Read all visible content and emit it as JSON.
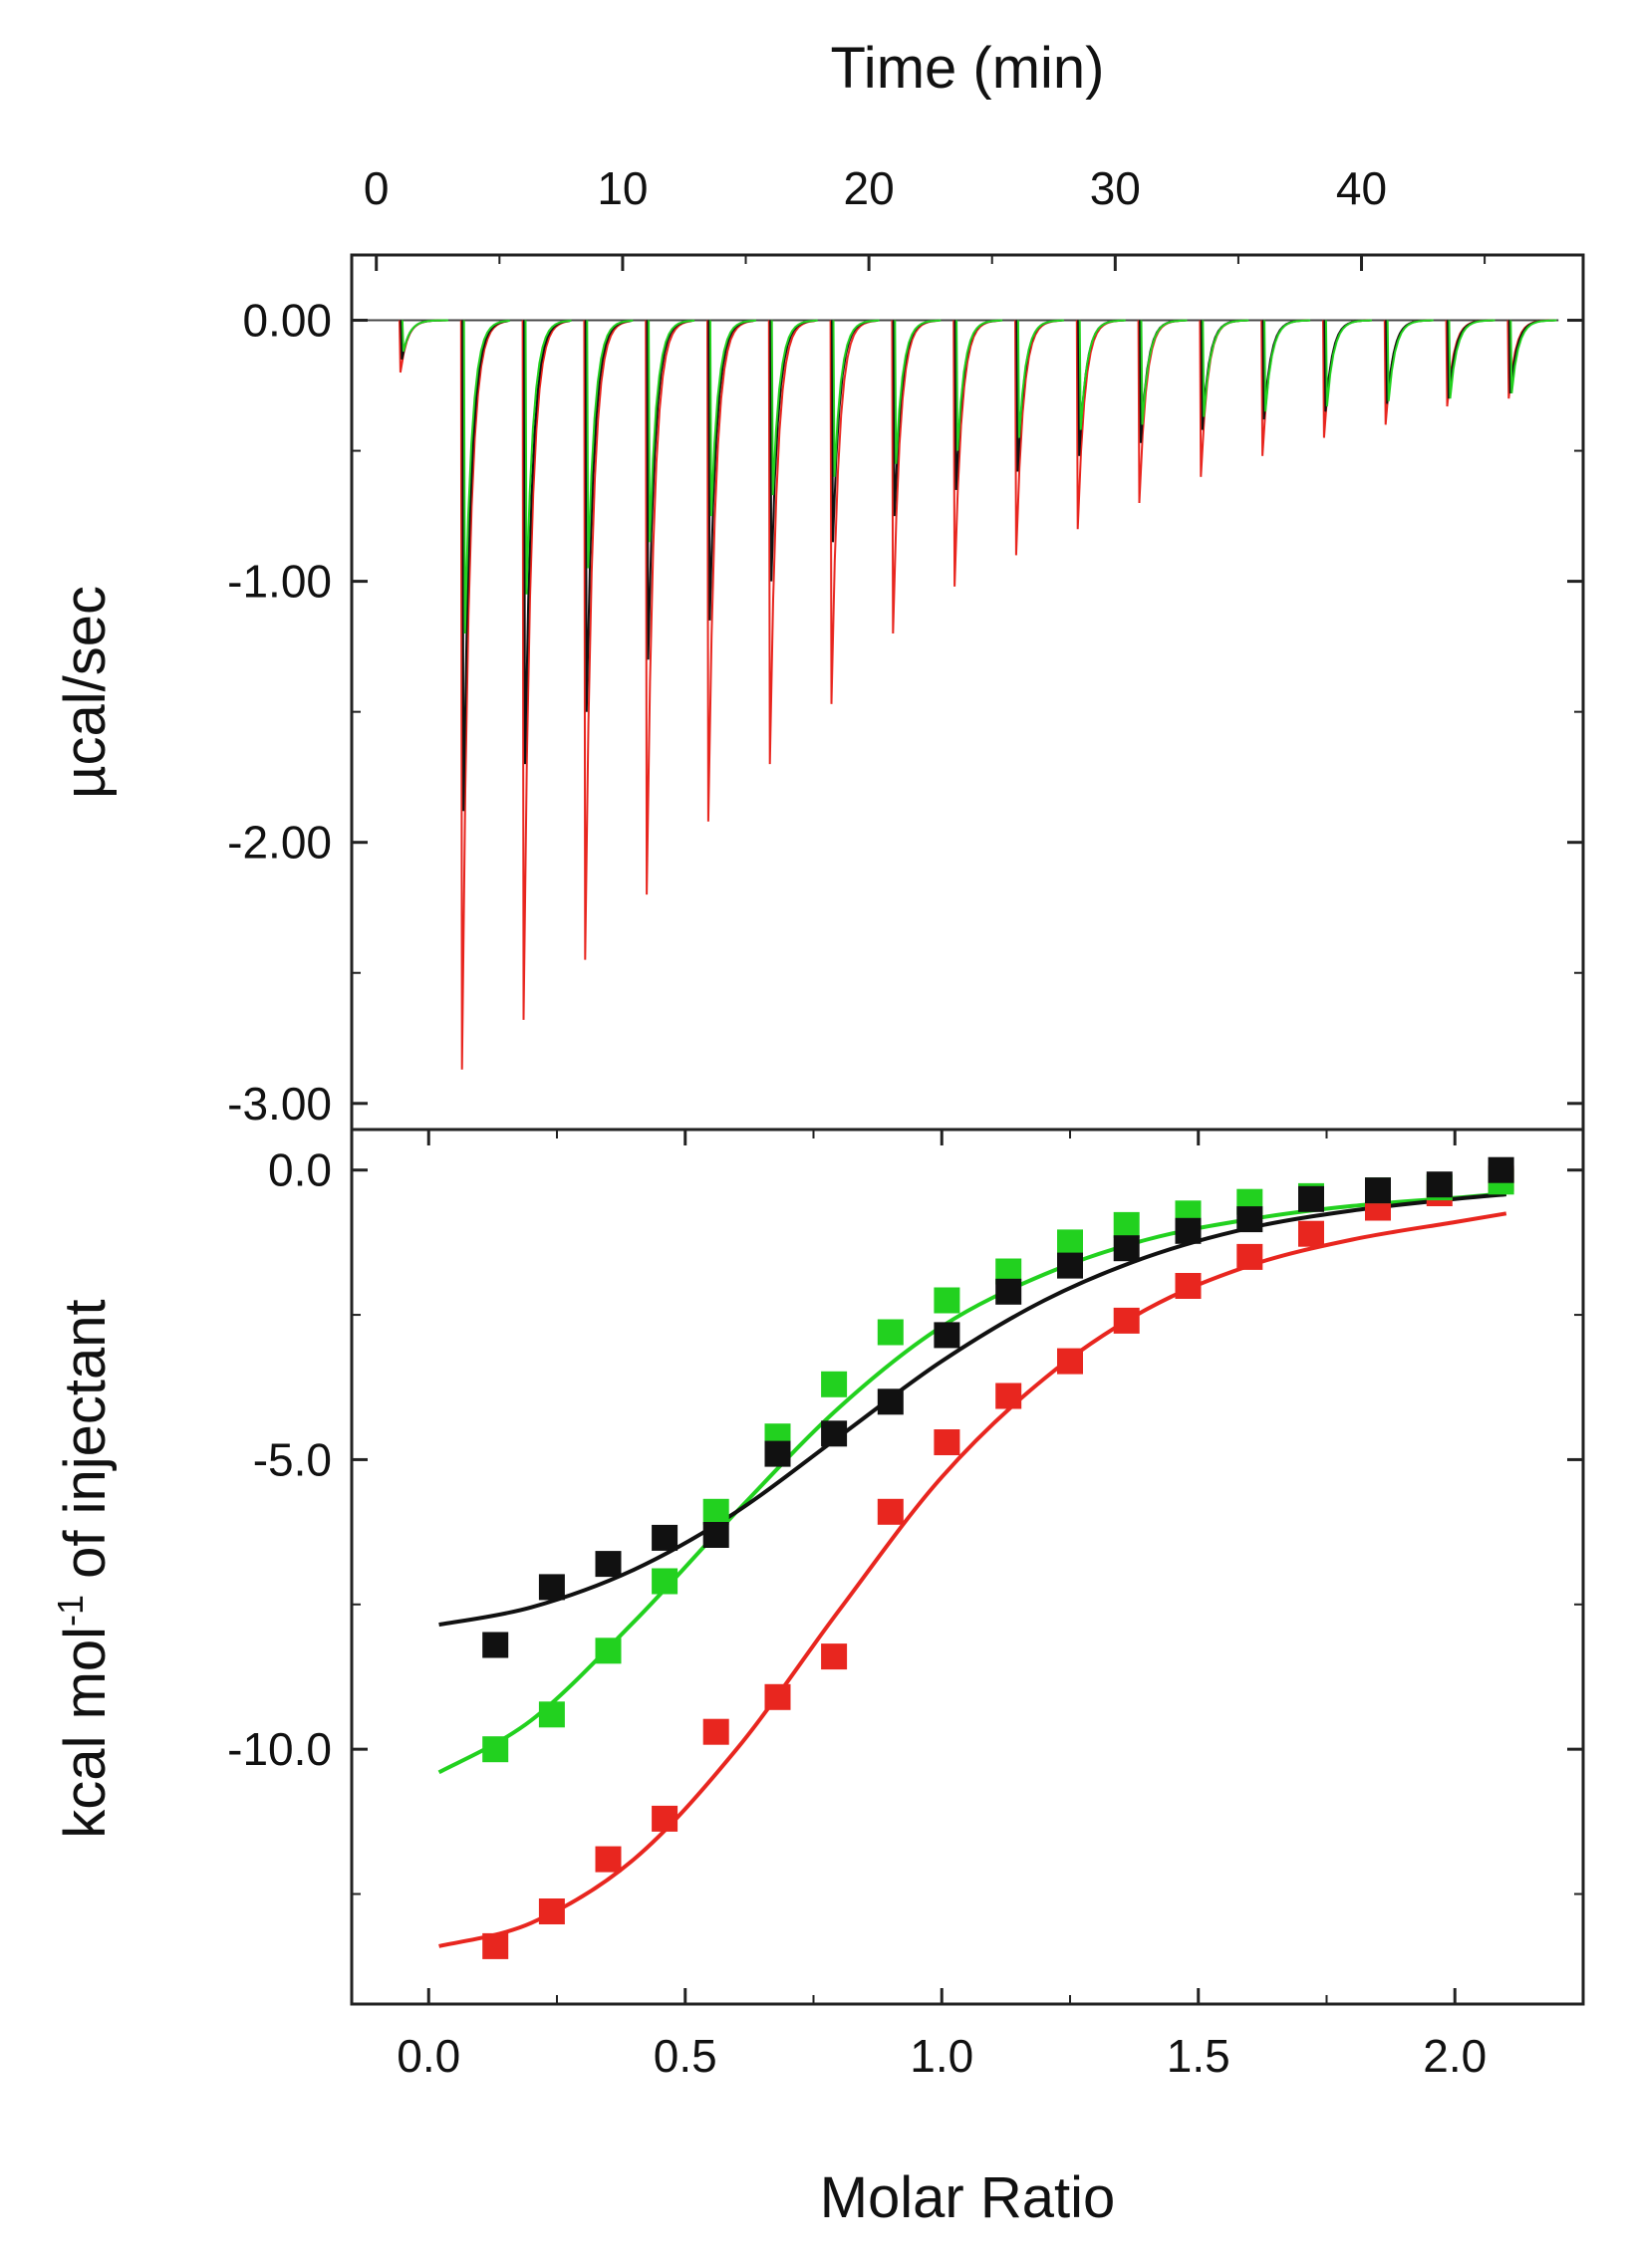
{
  "chart_data": [
    {
      "id": "thermogram",
      "type": "line",
      "title": "",
      "xlabel": "Time (min)",
      "ylabel": "µcal/sec",
      "xlim": [
        -1,
        49
      ],
      "ylim": [
        -3.1,
        0.25
      ],
      "xticks": [
        0,
        10,
        20,
        30,
        40
      ],
      "yticks": [
        0.0,
        -1.0,
        -2.0,
        -3.0
      ],
      "xtick_labels": [
        "0",
        "10",
        "20",
        "30",
        "40"
      ],
      "ytick_labels": [
        "0.00",
        "-1.00",
        "-2.00",
        "-3.00"
      ],
      "baseline": 0.0,
      "injection_times": [
        1.0,
        3.5,
        6.0,
        8.5,
        11.0,
        13.5,
        16.0,
        18.5,
        21.0,
        23.5,
        26.0,
        28.5,
        31.0,
        33.5,
        36.0,
        38.5,
        41.0,
        43.5,
        46.0
      ],
      "series": [
        {
          "name": "red",
          "color": "#e8261f",
          "peaks": [
            -0.2,
            -2.87,
            -2.68,
            -2.45,
            -2.2,
            -1.92,
            -1.7,
            -1.47,
            -1.2,
            -1.02,
            -0.9,
            -0.8,
            -0.7,
            -0.6,
            -0.52,
            -0.45,
            -0.4,
            -0.33,
            -0.3
          ]
        },
        {
          "name": "black",
          "color": "#111111",
          "peaks": [
            -0.15,
            -1.88,
            -1.7,
            -1.5,
            -1.3,
            -1.15,
            -1.0,
            -0.85,
            -0.75,
            -0.65,
            -0.58,
            -0.52,
            -0.47,
            -0.42,
            -0.38,
            -0.35,
            -0.32,
            -0.3,
            -0.28
          ]
        },
        {
          "name": "green",
          "color": "#22d11f",
          "peaks": [
            -0.12,
            -1.2,
            -1.05,
            -0.95,
            -0.85,
            -0.75,
            -0.67,
            -0.6,
            -0.55,
            -0.5,
            -0.45,
            -0.42,
            -0.4,
            -0.37,
            -0.35,
            -0.33,
            -0.31,
            -0.3,
            -0.28
          ]
        }
      ]
    },
    {
      "id": "binding-isotherm",
      "type": "scatter",
      "title": "",
      "xlabel": "Molar Ratio",
      "ylabel": "kcal mol",
      "ylabel_superscript": "-1",
      "ylabel_suffix": " of injectant",
      "xlim": [
        -0.15,
        2.25
      ],
      "ylim": [
        -14.4,
        0.7
      ],
      "xticks": [
        0.0,
        0.5,
        1.0,
        1.5,
        2.0
      ],
      "yticks": [
        0.0,
        -5.0,
        -10.0
      ],
      "xtick_labels": [
        "0.0",
        "0.5",
        "1.0",
        "1.5",
        "2.0"
      ],
      "ytick_labels": [
        "0.0",
        "-5.0",
        "-10.0"
      ],
      "series": [
        {
          "name": "red",
          "color": "#e8261f",
          "x": [
            0.13,
            0.24,
            0.35,
            0.46,
            0.56,
            0.68,
            0.79,
            0.9,
            1.01,
            1.13,
            1.25,
            1.36,
            1.48,
            1.6,
            1.72,
            1.85,
            1.97,
            2.09
          ],
          "y": [
            -13.4,
            -12.8,
            -11.9,
            -11.2,
            -9.7,
            -9.1,
            -8.4,
            -5.9,
            -4.7,
            -3.9,
            -3.3,
            -2.6,
            -2.0,
            -1.5,
            -1.1,
            -0.65,
            -0.4,
            -0.15
          ],
          "fit": [
            [
              0.02,
              -13.4
            ],
            [
              0.2,
              -13.0
            ],
            [
              0.4,
              -11.9
            ],
            [
              0.6,
              -10.0
            ],
            [
              0.8,
              -7.6
            ],
            [
              1.0,
              -5.3
            ],
            [
              1.2,
              -3.6
            ],
            [
              1.4,
              -2.4
            ],
            [
              1.6,
              -1.65
            ],
            [
              1.8,
              -1.2
            ],
            [
              2.0,
              -0.9
            ],
            [
              2.1,
              -0.75
            ]
          ]
        },
        {
          "name": "green",
          "color": "#22d11f",
          "x": [
            0.13,
            0.24,
            0.35,
            0.46,
            0.56,
            0.68,
            0.79,
            0.9,
            1.01,
            1.13,
            1.25,
            1.36,
            1.48,
            1.6,
            1.72,
            1.85,
            1.97,
            2.09
          ],
          "y": [
            -10.0,
            -9.4,
            -8.3,
            -7.1,
            -5.9,
            -4.6,
            -3.7,
            -2.8,
            -2.25,
            -1.75,
            -1.25,
            -0.95,
            -0.75,
            -0.55,
            -0.45,
            -0.35,
            -0.3,
            -0.2
          ],
          "fit": [
            [
              0.02,
              -10.4
            ],
            [
              0.2,
              -9.5
            ],
            [
              0.4,
              -7.8
            ],
            [
              0.6,
              -5.9
            ],
            [
              0.8,
              -4.1
            ],
            [
              1.0,
              -2.7
            ],
            [
              1.2,
              -1.8
            ],
            [
              1.4,
              -1.2
            ],
            [
              1.6,
              -0.85
            ],
            [
              1.8,
              -0.62
            ],
            [
              2.0,
              -0.48
            ],
            [
              2.1,
              -0.4
            ]
          ]
        },
        {
          "name": "black",
          "color": "#111111",
          "x": [
            0.13,
            0.24,
            0.35,
            0.46,
            0.56,
            0.68,
            0.79,
            0.9,
            1.01,
            1.13,
            1.25,
            1.36,
            1.48,
            1.6,
            1.72,
            1.85,
            1.97,
            2.09
          ],
          "y": [
            -8.2,
            -7.2,
            -6.8,
            -6.35,
            -6.3,
            -4.9,
            -4.55,
            -4.0,
            -2.85,
            -2.1,
            -1.65,
            -1.35,
            -1.05,
            -0.85,
            -0.5,
            -0.35,
            -0.25,
            0.0
          ],
          "fit": [
            [
              0.02,
              -7.85
            ],
            [
              0.2,
              -7.55
            ],
            [
              0.4,
              -6.9
            ],
            [
              0.6,
              -5.9
            ],
            [
              0.8,
              -4.6
            ],
            [
              1.0,
              -3.3
            ],
            [
              1.2,
              -2.25
            ],
            [
              1.4,
              -1.5
            ],
            [
              1.6,
              -1.0
            ],
            [
              1.8,
              -0.7
            ],
            [
              2.0,
              -0.5
            ],
            [
              2.1,
              -0.42
            ]
          ]
        }
      ]
    }
  ]
}
